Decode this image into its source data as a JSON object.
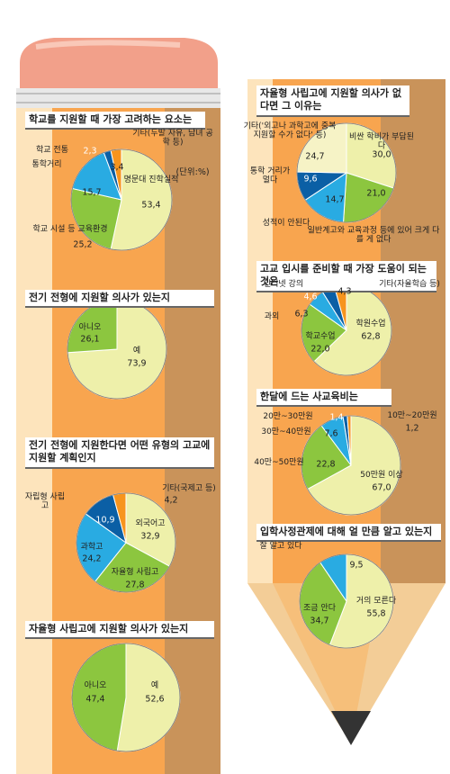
{
  "chart_data": [
    {
      "type": "pie",
      "title": "학교를 지원할 때 가장 고려하는 요소는",
      "subtitle": "(단위:%)",
      "categories": [
        "명문대 진학실적",
        "학교 시설 등 교육환경",
        "통학거리",
        "학교 전통",
        "기타(두발 자유, 남녀 공학 등)"
      ],
      "values": [
        53.4,
        25.2,
        15.7,
        2.3,
        3.4
      ],
      "value_labels": [
        "53,4",
        "25,2",
        "15,7",
        "2,3",
        "3,4"
      ],
      "colors": [
        "#eef0aa",
        "#8cc63f",
        "#29abe2",
        "#0b5fa5",
        "#f7941d"
      ]
    },
    {
      "type": "pie",
      "title": "전기 전형에 지원할 의사가 있는지",
      "categories": [
        "예",
        "아니오"
      ],
      "values": [
        73.9,
        26.1
      ],
      "value_labels": [
        "73,9",
        "26,1"
      ],
      "colors": [
        "#eef0aa",
        "#8cc63f"
      ]
    },
    {
      "type": "pie",
      "title": "전기 전형에 지원한다면 어떤 유형의 고교에 지원할 계획인지",
      "categories": [
        "외국어고",
        "자율형 사립고",
        "과학고",
        "자립형 사립고",
        "기타(국제고 등)"
      ],
      "values": [
        32.9,
        27.8,
        24.2,
        10.9,
        4.2
      ],
      "value_labels": [
        "32,9",
        "27,8",
        "24,2",
        "10,9",
        "4,2"
      ],
      "colors": [
        "#eef0aa",
        "#8cc63f",
        "#29abe2",
        "#0b5fa5",
        "#f7941d"
      ]
    },
    {
      "type": "pie",
      "title": "자율형 사립고에 지원할 의사가 있는지",
      "categories": [
        "예",
        "아니오"
      ],
      "values": [
        52.6,
        47.4
      ],
      "value_labels": [
        "52,6",
        "47,4"
      ],
      "colors": [
        "#eef0aa",
        "#8cc63f"
      ]
    },
    {
      "type": "pie",
      "title": "자율형 사립고에 지원할 의사가 없다면 그 이유는",
      "categories": [
        "비싼 학비가 부담된다",
        "일반계고와 교육과정 등에 있어 크게 다를 게 없다",
        "성적이 안된다",
        "통학 거리가 멀다",
        "기타('외고나 과학고에 중복 지원할 수가 없다' 등)"
      ],
      "values": [
        30.0,
        21.0,
        14.7,
        9.6,
        24.7
      ],
      "value_labels": [
        "30,0",
        "21,0",
        "14,7",
        "9,6",
        "24,7"
      ],
      "colors": [
        "#eef0aa",
        "#8cc63f",
        "#29abe2",
        "#0b5fa5",
        "#f6f3c6"
      ]
    },
    {
      "type": "pie",
      "title": "고교 입시를 준비할 때 가장 도움이 되는 것은",
      "categories": [
        "학원수업",
        "학교수업",
        "과외",
        "인터넷 강의",
        "기타(자율학습 등)"
      ],
      "values": [
        62.8,
        22.0,
        6.3,
        4.6,
        4.3
      ],
      "value_labels": [
        "62,8",
        "22,0",
        "6,3",
        "4,6",
        "4,3"
      ],
      "colors": [
        "#eef0aa",
        "#8cc63f",
        "#29abe2",
        "#0b5fa5",
        "#f7941d"
      ]
    },
    {
      "type": "pie",
      "title": "한달에 드는 사교육비는",
      "categories": [
        "50만원 이상",
        "40만~50만원",
        "30만~40만원",
        "20만~30만원",
        "10만~20만원"
      ],
      "values": [
        67.0,
        22.8,
        7.6,
        1.4,
        1.2
      ],
      "value_labels": [
        "67,0",
        "22,8",
        "7,6",
        "1,4",
        "1,2"
      ],
      "colors": [
        "#eef0aa",
        "#8cc63f",
        "#29abe2",
        "#0b5fa5",
        "#f7941d"
      ]
    },
    {
      "type": "pie",
      "title": "입학사정관제에 대해 얼 만큼 알고 있는지",
      "categories": [
        "거의 모른다",
        "조금 안다",
        "잘 알고 있다"
      ],
      "values": [
        55.8,
        34.7,
        9.5
      ],
      "value_labels": [
        "55,8",
        "34,7",
        "9,5"
      ],
      "colors": [
        "#eef0aa",
        "#8cc63f",
        "#29abe2"
      ]
    }
  ]
}
